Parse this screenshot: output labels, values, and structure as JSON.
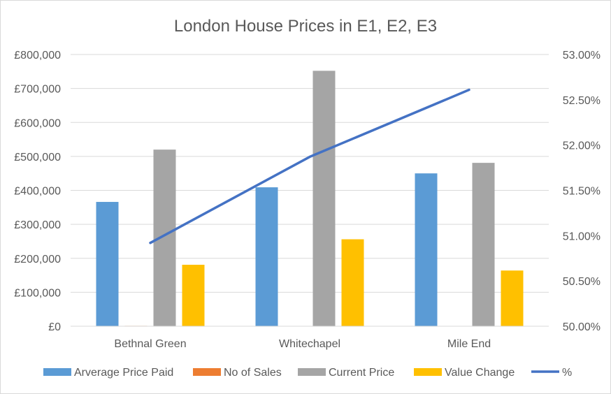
{
  "chart_data": {
    "type": "bar",
    "title": "London House Prices in E1, E2, E3",
    "categories": [
      "Bethnal Green",
      "Whitechapel",
      "Mile End"
    ],
    "series": [
      {
        "name": "Arverage Price Paid",
        "axis": "left",
        "color": "#5b9bd5",
        "values": [
          366000,
          409000,
          450000
        ]
      },
      {
        "name": "No of Sales",
        "axis": "left",
        "color": "#ed7d31",
        "values": [
          1200,
          900,
          150
        ]
      },
      {
        "name": "Current Price",
        "axis": "left",
        "color": "#a5a5a5",
        "values": [
          520000,
          752000,
          481000
        ]
      },
      {
        "name": "Value Change",
        "axis": "left",
        "color": "#ffc000",
        "values": [
          181000,
          256000,
          164000
        ]
      },
      {
        "name": "%",
        "type": "line",
        "axis": "right",
        "color": "#4472c4",
        "values": [
          0.5092,
          0.5187,
          0.5261
        ]
      }
    ],
    "left_axis": {
      "min": 0,
      "max": 800000,
      "ticks": [
        0,
        100000,
        200000,
        300000,
        400000,
        500000,
        600000,
        700000,
        800000
      ],
      "tick_labels": [
        "£0",
        "£100,000",
        "£200,000",
        "£300,000",
        "£400,000",
        "£500,000",
        "£600,000",
        "£700,000",
        "£800,000"
      ]
    },
    "right_axis": {
      "min": 0.5,
      "max": 0.53,
      "ticks": [
        0.5,
        0.505,
        0.51,
        0.515,
        0.52,
        0.525,
        0.53
      ],
      "tick_labels": [
        "50.00%",
        "50.50%",
        "51.00%",
        "51.50%",
        "52.00%",
        "52.50%",
        "53.00%"
      ]
    },
    "gridlines": true,
    "legend_position": "bottom"
  }
}
